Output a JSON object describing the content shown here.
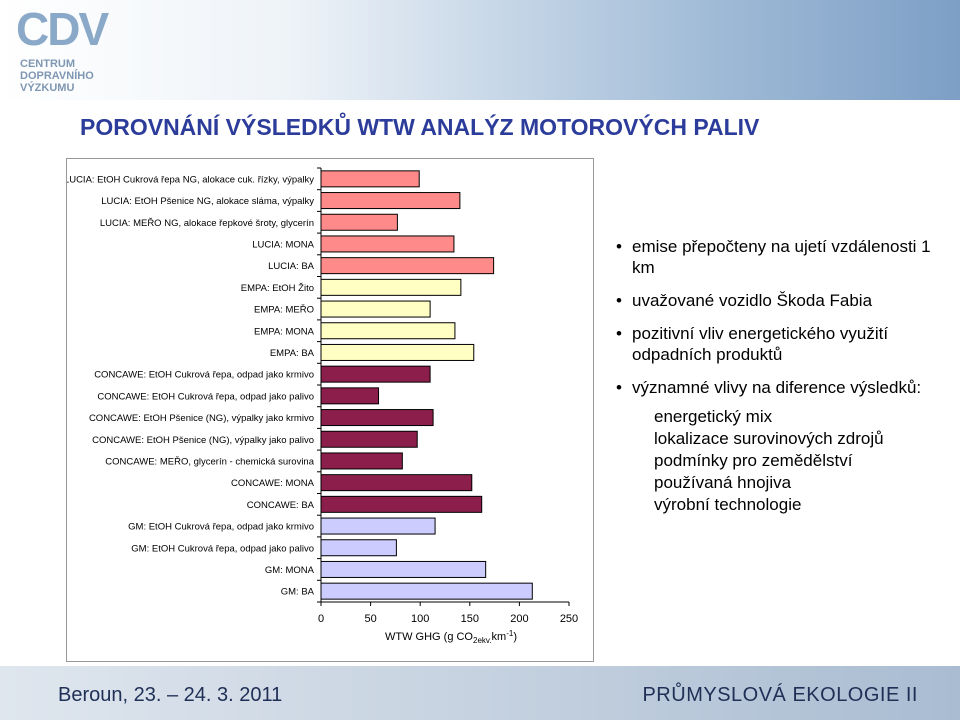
{
  "logo": {
    "mark": "CDV",
    "lines": [
      "CENTRUM",
      "DOPRAVNÍHO",
      "VÝZKUMU"
    ]
  },
  "title": "POROVNÁNÍ VÝSLEDKŮ WTW ANALÝZ MOTOROVÝCH PALIV",
  "chart_data": {
    "type": "bar",
    "orientation": "horizontal",
    "title": "",
    "xlabel": "WTW GHG (g CO2ekv.km-1)",
    "xlabel_parts": {
      "main": "WTW GHG (g CO",
      "sub": "2ekv.",
      "mid": "km",
      "sup": "-1",
      "end": ")"
    },
    "xlim": [
      0,
      250
    ],
    "xticks": [
      0,
      50,
      100,
      150,
      200,
      250
    ],
    "grid": false,
    "categories": [
      "LUCIA: EtOH Cukrová řepa NG, alokace cuk. řízky, výpalky",
      "LUCIA: EtOH Pšenice NG, alokace sláma, výpalky",
      "LUCIA: MEŘO NG, alokace řepkové šroty, glycerín",
      "LUCIA: MONA",
      "LUCIA: BA",
      "EMPA: EtOH Žito",
      "EMPA: MEŘO",
      "EMPA: MONA",
      "EMPA: BA",
      "CONCAWE: EtOH Cukrová řepa, odpad jako krmivo",
      "CONCAWE: EtOH Cukrová řepa, odpad jako palivo",
      "CONCAWE: EtOH Pšenice (NG), výpalky jako krmivo",
      "CONCAWE: EtOH Pšenice (NG), výpalky jako palivo",
      "CONCAWE: MEŘO, glycerín - chemická surovina",
      "CONCAWE: MONA",
      "CONCAWE: BA",
      "GM: EtOH Cukrová řepa, odpad jako krmivo",
      "GM: EtOH Cukrová řepa, odpad jako palivo",
      "GM: MONA",
      "GM: BA"
    ],
    "values": [
      99,
      140,
      77,
      134,
      174,
      141,
      110,
      135,
      154,
      110,
      58,
      113,
      97,
      82,
      152,
      162,
      115,
      76,
      166,
      213
    ],
    "colors": [
      "#ff8a8a",
      "#ff8a8a",
      "#ff8a8a",
      "#ff8a8a",
      "#ff8a8a",
      "#ffffc4",
      "#ffffc4",
      "#ffffc4",
      "#ffffc4",
      "#8b1e4a",
      "#8b1e4a",
      "#8b1e4a",
      "#8b1e4a",
      "#8b1e4a",
      "#8b1e4a",
      "#8b1e4a",
      "#ccccff",
      "#ccccff",
      "#ccccff",
      "#ccccff"
    ],
    "legend": "none"
  },
  "bullets": [
    {
      "text": "emise přepočteny na ujetí vzdálenosti 1 km"
    },
    {
      "text": "uvažované vozidlo Škoda Fabia"
    },
    {
      "text": "pozitivní vliv energetického využití odpadních produktů"
    },
    {
      "text": "významné vlivy na diference výsledků:"
    }
  ],
  "sub_items": [
    "energetický mix",
    "lokalizace surovinových zdrojů",
    "podmínky pro zemědělství",
    "používaná hnojiva",
    "výrobní technologie"
  ],
  "footer": {
    "left": "Beroun, 23. – 24. 3. 2011",
    "right": "PRŮMYSLOVÁ EKOLOGIE II"
  }
}
